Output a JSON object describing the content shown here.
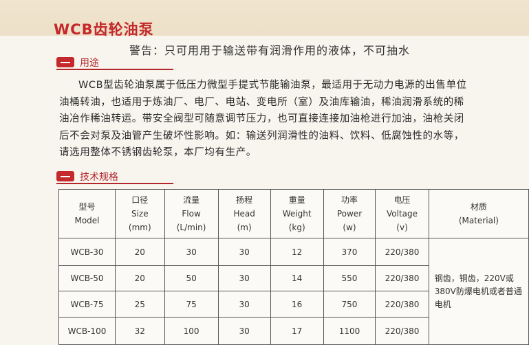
{
  "title": "WCB齿轮油泵",
  "warning": "警告：只可用用于输送带有润滑作用的液体，不可抽水",
  "sections": [
    {
      "label": "用途"
    },
    {
      "label": "技术规格"
    }
  ],
  "description": [
    "WCB型齿轮油泵属于低压力微型手提式节能输油泵，最适用于无动力电源的出售单位",
    "油桶转油，也适用于炼油厂、电厂、电站、变电所（室）及油库输油，稀油润滑系统的稀",
    "油冶作稀油转运。带安全阀型可随意调节压力，也可直接连接加油枪进行加油，油枪关闭",
    "后不会对泵及油管产生破坏性影响。如：输送列润滑性的油料、饮料、低腐蚀性的水等，",
    "请选用整体不锈钢齿轮泵，本厂均有生产。"
  ],
  "table": {
    "headers": [
      [
        "型号",
        "Model",
        ""
      ],
      [
        "口径",
        "Size",
        "(mm)"
      ],
      [
        "流量",
        "Flow",
        "(L/min)"
      ],
      [
        "扬程",
        "Head",
        "(m)"
      ],
      [
        "重量",
        "Weight",
        "(kg)"
      ],
      [
        "功率",
        "Power",
        "(w)"
      ],
      [
        "电压",
        "Voltage",
        "(v)"
      ],
      [
        "材质",
        "(Material)",
        ""
      ]
    ],
    "rows": [
      [
        "WCB-30",
        "20",
        "30",
        "30",
        "12",
        "370",
        "220/380"
      ],
      [
        "WCB-50",
        "20",
        "50",
        "30",
        "14",
        "550",
        "220/380"
      ],
      [
        "WCB-75",
        "25",
        "75",
        "30",
        "16",
        "750",
        "220/380"
      ],
      [
        "WCB-100",
        "32",
        "100",
        "30",
        "17",
        "1100",
        "220/380"
      ]
    ],
    "material": "钢齿，铜齿，220V或380V防爆电机或者普通电机"
  }
}
